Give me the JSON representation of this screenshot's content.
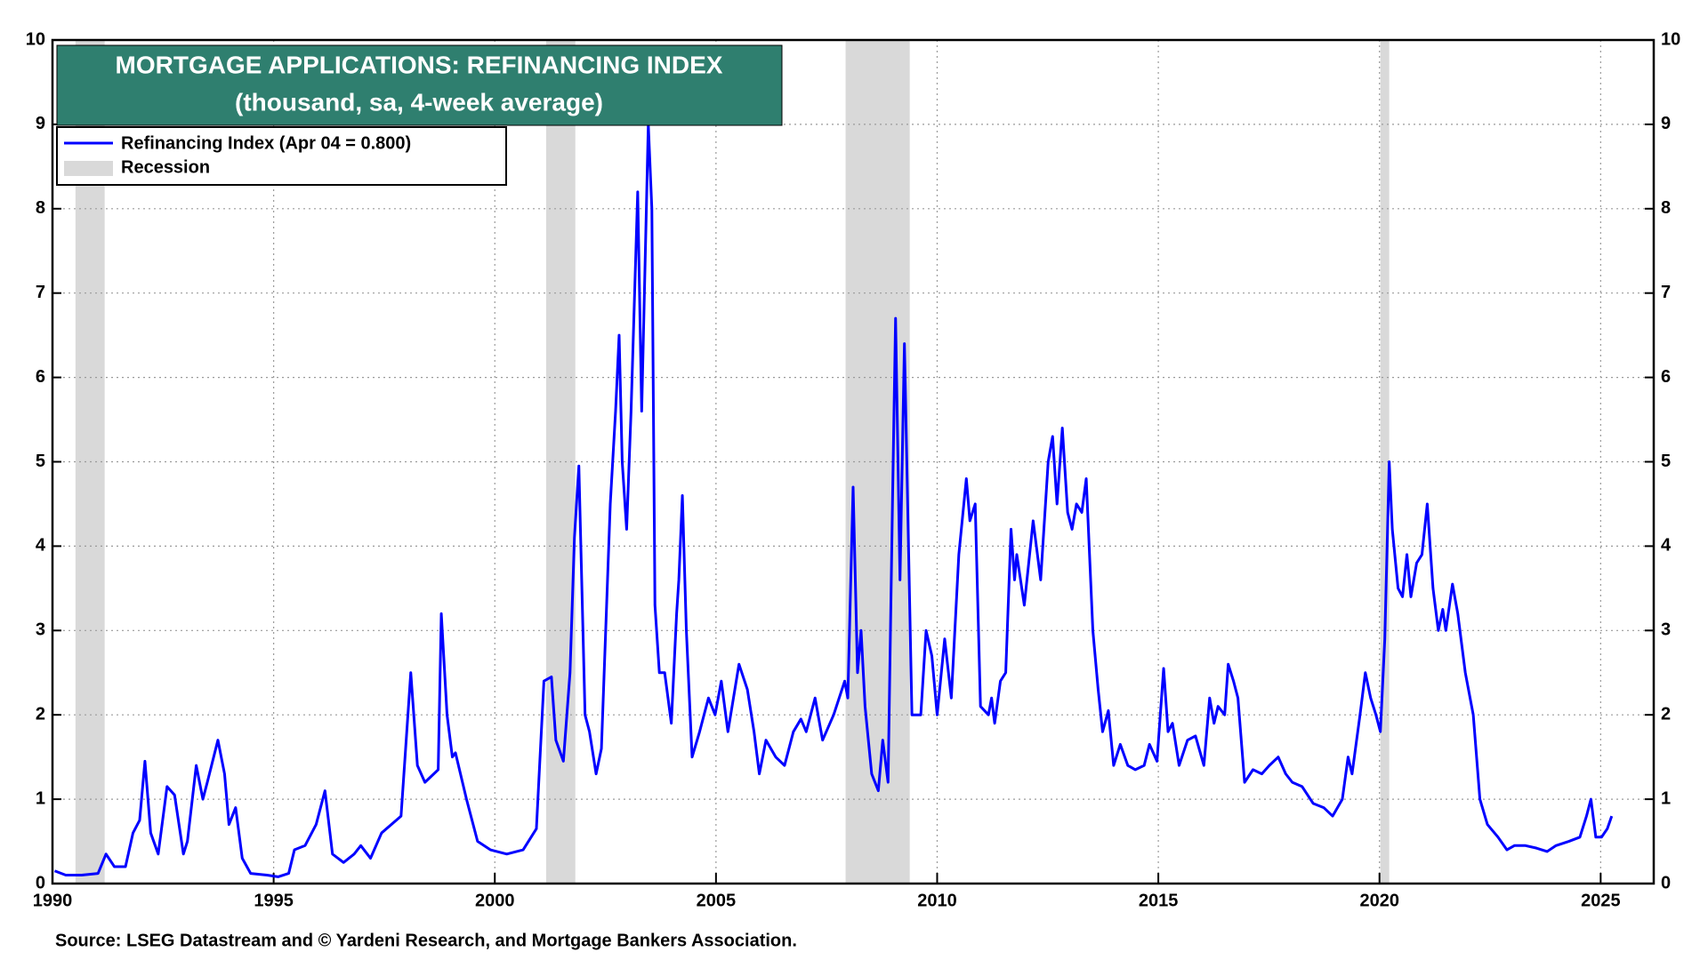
{
  "chart_data": {
    "type": "line",
    "title": "MORTGAGE APPLICATIONS: REFINANCING INDEX",
    "subtitle": "(thousand, sa, 4-week average)",
    "source": "Source: LSEG Datastream and © Yardeni Research, and Mortgage Bankers Association.",
    "x": [
      1990.05,
      1990.3,
      1990.66,
      1991.03,
      1991.21,
      1991.4,
      1991.65,
      1991.82,
      1991.97,
      1992.09,
      1992.22,
      1992.39,
      1992.59,
      1992.76,
      1992.96,
      1993.05,
      1993.25,
      1993.4,
      1993.5,
      1993.74,
      1993.89,
      1993.99,
      1994.14,
      1994.29,
      1994.48,
      1994.85,
      1995.1,
      1995.34,
      1995.47,
      1995.71,
      1995.96,
      1996.16,
      1996.33,
      1996.58,
      1996.82,
      1996.97,
      1997.19,
      1997.44,
      1997.88,
      1998.1,
      1998.25,
      1998.42,
      1998.62,
      1998.72,
      1998.79,
      1998.92,
      1999.04,
      1999.11,
      1999.36,
      1999.61,
      1999.9,
      2000.27,
      2000.64,
      2000.94,
      2001.11,
      2001.28,
      2001.38,
      2001.55,
      2001.7,
      2001.8,
      2001.9,
      2002.04,
      2002.14,
      2002.29,
      2002.41,
      2002.61,
      2002.73,
      2002.81,
      2002.88,
      2002.98,
      2003.08,
      2003.23,
      2003.32,
      2003.47,
      2003.55,
      2003.62,
      2003.72,
      2003.84,
      2003.99,
      2004.11,
      2004.16,
      2004.24,
      2004.33,
      2004.46,
      2004.63,
      2004.83,
      2004.98,
      2005.12,
      2005.27,
      2005.52,
      2005.71,
      2005.86,
      2005.98,
      2006.13,
      2006.35,
      2006.55,
      2006.75,
      2006.92,
      2007.04,
      2007.24,
      2007.41,
      2007.66,
      2007.91,
      2007.98,
      2008.1,
      2008.2,
      2008.28,
      2008.37,
      2008.52,
      2008.67,
      2008.77,
      2008.89,
      2008.99,
      2009.06,
      2009.16,
      2009.26,
      2009.43,
      2009.63,
      2009.75,
      2009.88,
      2010.0,
      2010.17,
      2010.32,
      2010.49,
      2010.66,
      2010.74,
      2010.86,
      2010.98,
      2011.16,
      2011.23,
      2011.3,
      2011.43,
      2011.55,
      2011.67,
      2011.75,
      2011.8,
      2011.97,
      2012.17,
      2012.34,
      2012.51,
      2012.61,
      2012.71,
      2012.83,
      2012.95,
      2013.05,
      2013.15,
      2013.27,
      2013.37,
      2013.52,
      2013.64,
      2013.74,
      2013.87,
      2013.99,
      2014.14,
      2014.31,
      2014.48,
      2014.68,
      2014.8,
      2014.97,
      2015.12,
      2015.22,
      2015.32,
      2015.47,
      2015.66,
      2015.84,
      2016.03,
      2016.16,
      2016.26,
      2016.35,
      2016.5,
      2016.58,
      2016.7,
      2016.8,
      2016.95,
      2017.14,
      2017.34,
      2017.51,
      2017.71,
      2017.88,
      2018.03,
      2018.25,
      2018.5,
      2018.74,
      2018.94,
      2019.16,
      2019.29,
      2019.38,
      2019.56,
      2019.68,
      2019.8,
      2019.92,
      2020.02,
      2020.12,
      2020.22,
      2020.29,
      2020.42,
      2020.52,
      2020.62,
      2020.71,
      2020.84,
      2020.96,
      2021.08,
      2021.21,
      2021.33,
      2021.43,
      2021.5,
      2021.65,
      2021.77,
      2021.94,
      2022.12,
      2022.27,
      2022.44,
      2022.68,
      2022.88,
      2023.05,
      2023.3,
      2023.55,
      2023.79,
      2023.99,
      2024.28,
      2024.53,
      2024.68,
      2024.78,
      2024.89,
      2025.02,
      2025.15,
      2025.25
    ],
    "series": [
      {
        "name": "Refinancing Index (Apr 04 = 0.800)",
        "color": "#0000ff",
        "values": [
          0.15,
          0.1,
          0.1,
          0.12,
          0.35,
          0.2,
          0.2,
          0.6,
          0.75,
          1.45,
          0.6,
          0.35,
          1.15,
          1.05,
          0.35,
          0.5,
          1.4,
          1.0,
          1.2,
          1.7,
          1.3,
          0.7,
          0.9,
          0.3,
          0.12,
          0.1,
          0.08,
          0.12,
          0.4,
          0.45,
          0.7,
          1.1,
          0.35,
          0.25,
          0.35,
          0.45,
          0.3,
          0.6,
          0.8,
          2.5,
          1.4,
          1.2,
          1.3,
          1.35,
          3.2,
          2.0,
          1.5,
          1.55,
          1.0,
          0.5,
          0.4,
          0.35,
          0.4,
          0.65,
          2.4,
          2.45,
          1.7,
          1.45,
          2.5,
          4.1,
          4.95,
          2.0,
          1.8,
          1.3,
          1.6,
          4.5,
          5.6,
          6.5,
          5.0,
          4.2,
          5.6,
          8.2,
          5.6,
          9.0,
          8.0,
          3.3,
          2.5,
          2.5,
          1.9,
          3.2,
          3.6,
          4.6,
          3.0,
          1.5,
          1.8,
          2.2,
          2.0,
          2.4,
          1.8,
          2.6,
          2.3,
          1.8,
          1.3,
          1.7,
          1.5,
          1.4,
          1.8,
          1.95,
          1.8,
          2.2,
          1.7,
          2.0,
          2.4,
          2.2,
          4.7,
          2.5,
          3.0,
          2.1,
          1.3,
          1.1,
          1.7,
          1.2,
          4.5,
          6.7,
          3.6,
          6.4,
          2.0,
          2.0,
          3.0,
          2.7,
          2.0,
          2.9,
          2.2,
          3.9,
          4.8,
          4.3,
          4.5,
          2.1,
          2.0,
          2.2,
          1.9,
          2.4,
          2.5,
          4.2,
          3.6,
          3.9,
          3.3,
          4.3,
          3.6,
          5.0,
          5.3,
          4.5,
          5.4,
          4.4,
          4.2,
          4.5,
          4.4,
          4.8,
          3.0,
          2.3,
          1.8,
          2.05,
          1.4,
          1.65,
          1.4,
          1.35,
          1.4,
          1.65,
          1.45,
          2.55,
          1.8,
          1.9,
          1.4,
          1.7,
          1.75,
          1.4,
          2.2,
          1.9,
          2.1,
          2.0,
          2.6,
          2.4,
          2.2,
          1.2,
          1.35,
          1.3,
          1.4,
          1.5,
          1.3,
          1.2,
          1.15,
          0.95,
          0.9,
          0.8,
          1.0,
          1.5,
          1.3,
          2.0,
          2.5,
          2.2,
          2.0,
          1.8,
          2.9,
          5.0,
          4.2,
          3.5,
          3.4,
          3.9,
          3.4,
          3.8,
          3.9,
          4.5,
          3.5,
          3.0,
          3.25,
          3.0,
          3.55,
          3.2,
          2.5,
          2.0,
          1.0,
          0.7,
          0.55,
          0.4,
          0.45,
          0.45,
          0.42,
          0.38,
          0.45,
          0.5,
          0.55,
          0.8,
          1.0,
          0.55,
          0.55,
          0.65,
          0.8
        ]
      }
    ],
    "recessions": {
      "name": "Recession",
      "color": "#d9d9d9",
      "periods": [
        [
          1990.52,
          1991.18
        ],
        [
          2001.16,
          2001.82
        ],
        [
          2007.93,
          2009.38
        ],
        [
          2020.02,
          2020.22
        ]
      ]
    },
    "xlim": [
      1990,
      2026.2
    ],
    "xticks": [
      1990,
      1995,
      2000,
      2005,
      2010,
      2015,
      2020,
      2025
    ],
    "ylim": [
      0,
      10
    ],
    "yticks": [
      0,
      1,
      2,
      3,
      4,
      5,
      6,
      7,
      8,
      9,
      10
    ],
    "y2lim": [
      0,
      10
    ],
    "y2ticks": [
      0,
      1,
      2,
      3,
      4,
      5,
      6,
      7,
      8,
      9,
      10
    ],
    "grid": true
  }
}
